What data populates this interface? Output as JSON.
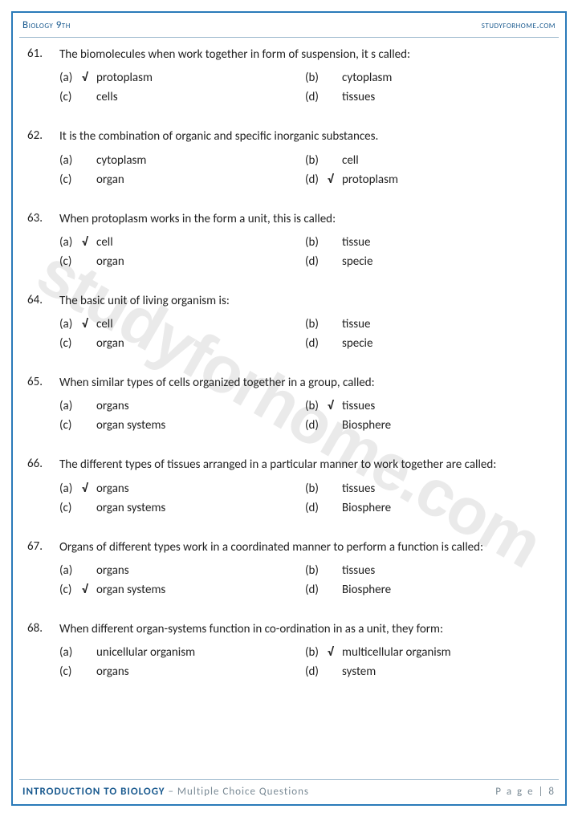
{
  "header": {
    "left": "Biology 9th",
    "right": "studyforhome.com"
  },
  "footer": {
    "title": "INTRODUCTION TO BIOLOGY",
    "subtitle": " – Multiple Choice Questions",
    "page": "P a g e  | 8"
  },
  "watermark": "studyforhome.com",
  "questions": [
    {
      "num": "61.",
      "text": "The biomolecules when work together in form of suspension, it s called:",
      "options": [
        {
          "lbl": "(a)",
          "chk": "√",
          "txt": "protoplasm"
        },
        {
          "lbl": "(b)",
          "chk": "",
          "txt": "cytoplasm"
        },
        {
          "lbl": "(c)",
          "chk": "",
          "txt": "cells"
        },
        {
          "lbl": "(d)",
          "chk": "",
          "txt": "tissues"
        }
      ]
    },
    {
      "num": "62.",
      "text": "It is the combination of organic and specific inorganic substances.",
      "options": [
        {
          "lbl": "(a)",
          "chk": "",
          "txt": "cytoplasm"
        },
        {
          "lbl": "(b)",
          "chk": "",
          "txt": "cell"
        },
        {
          "lbl": "(c)",
          "chk": "",
          "txt": "organ"
        },
        {
          "lbl": "(d)",
          "chk": "√",
          "txt": "protoplasm"
        }
      ]
    },
    {
      "num": "63.",
      "text": "When protoplasm works in the form a unit, this is called:",
      "options": [
        {
          "lbl": "(a)",
          "chk": "√",
          "txt": "cell"
        },
        {
          "lbl": "(b)",
          "chk": "",
          "txt": "tissue"
        },
        {
          "lbl": "(c)",
          "chk": "",
          "txt": "organ"
        },
        {
          "lbl": "(d)",
          "chk": "",
          "txt": "specie"
        }
      ]
    },
    {
      "num": "64.",
      "text": "The basic unit of living organism is:",
      "options": [
        {
          "lbl": "(a)",
          "chk": "√",
          "txt": "cell"
        },
        {
          "lbl": "(b)",
          "chk": "",
          "txt": "tissue"
        },
        {
          "lbl": "(c)",
          "chk": "",
          "txt": "organ"
        },
        {
          "lbl": "(d)",
          "chk": "",
          "txt": "specie"
        }
      ]
    },
    {
      "num": "65.",
      "text": "When similar types of cells organized together in a group, called:",
      "options": [
        {
          "lbl": "(a)",
          "chk": "",
          "txt": "organs"
        },
        {
          "lbl": "(b)",
          "chk": "√",
          "txt": "tissues"
        },
        {
          "lbl": "(c)",
          "chk": "",
          "txt": "organ systems"
        },
        {
          "lbl": "(d)",
          "chk": "",
          "txt": "Biosphere"
        }
      ]
    },
    {
      "num": "66.",
      "text": "The different types of tissues arranged in a particular manner to work together are called:",
      "options": [
        {
          "lbl": "(a)",
          "chk": "√",
          "txt": "organs"
        },
        {
          "lbl": "(b)",
          "chk": "",
          "txt": "tissues"
        },
        {
          "lbl": "(c)",
          "chk": "",
          "txt": "organ systems"
        },
        {
          "lbl": "(d)",
          "chk": "",
          "txt": "Biosphere"
        }
      ]
    },
    {
      "num": "67.",
      "text": "Organs of different types work in a coordinated manner to perform a function is called:",
      "options": [
        {
          "lbl": "(a)",
          "chk": "",
          "txt": "organs"
        },
        {
          "lbl": "(b)",
          "chk": "",
          "txt": "tissues"
        },
        {
          "lbl": "(c)",
          "chk": "√",
          "txt": "organ systems"
        },
        {
          "lbl": "(d)",
          "chk": "",
          "txt": "Biosphere"
        }
      ]
    },
    {
      "num": "68.",
      "text": "When different organ-systems function in co-ordination in as a unit, they form:",
      "options": [
        {
          "lbl": "(a)",
          "chk": "",
          "txt": "unicellular organism"
        },
        {
          "lbl": "(b)",
          "chk": "√",
          "txt": "multicellular organism"
        },
        {
          "lbl": "(c)",
          "chk": "",
          "txt": "organs"
        },
        {
          "lbl": "(d)",
          "chk": "",
          "txt": "system"
        }
      ]
    }
  ]
}
